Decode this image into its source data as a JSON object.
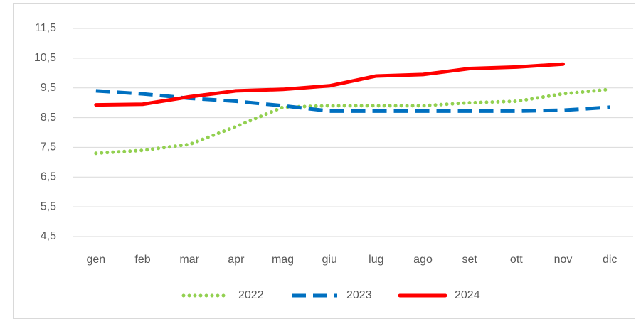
{
  "chart_data": {
    "type": "line",
    "categories": [
      "gen",
      "feb",
      "mar",
      "apr",
      "mag",
      "giu",
      "lug",
      "ago",
      "set",
      "ott",
      "nov",
      "dic"
    ],
    "series": [
      {
        "name": "2022",
        "color": "#92d050",
        "style": "dotted",
        "values": [
          7.3,
          7.4,
          7.6,
          8.2,
          8.85,
          8.9,
          8.9,
          8.9,
          9.0,
          9.05,
          9.3,
          9.45
        ]
      },
      {
        "name": "2023",
        "color": "#0070c0",
        "style": "dashed",
        "values": [
          9.4,
          9.3,
          9.15,
          9.05,
          8.9,
          8.72,
          8.72,
          8.72,
          8.72,
          8.72,
          8.75,
          8.85
        ]
      },
      {
        "name": "2024",
        "color": "#ff0000",
        "style": "solid",
        "values": [
          8.93,
          8.95,
          9.2,
          9.4,
          9.45,
          9.57,
          9.9,
          9.95,
          10.15,
          10.2,
          10.3,
          null
        ]
      }
    ],
    "ylim": [
      4.5,
      11.5
    ],
    "yticks": [
      {
        "value": 4.5,
        "label": "4,5"
      },
      {
        "value": 5.5,
        "label": "5,5"
      },
      {
        "value": 6.5,
        "label": "6,5"
      },
      {
        "value": 7.5,
        "label": "7,5"
      },
      {
        "value": 8.5,
        "label": "8,5"
      },
      {
        "value": 9.5,
        "label": "9,5"
      },
      {
        "value": 10.5,
        "label": "10,5"
      },
      {
        "value": 11.5,
        "label": "11,5"
      }
    ],
    "grid": true,
    "legend": "bottom"
  }
}
